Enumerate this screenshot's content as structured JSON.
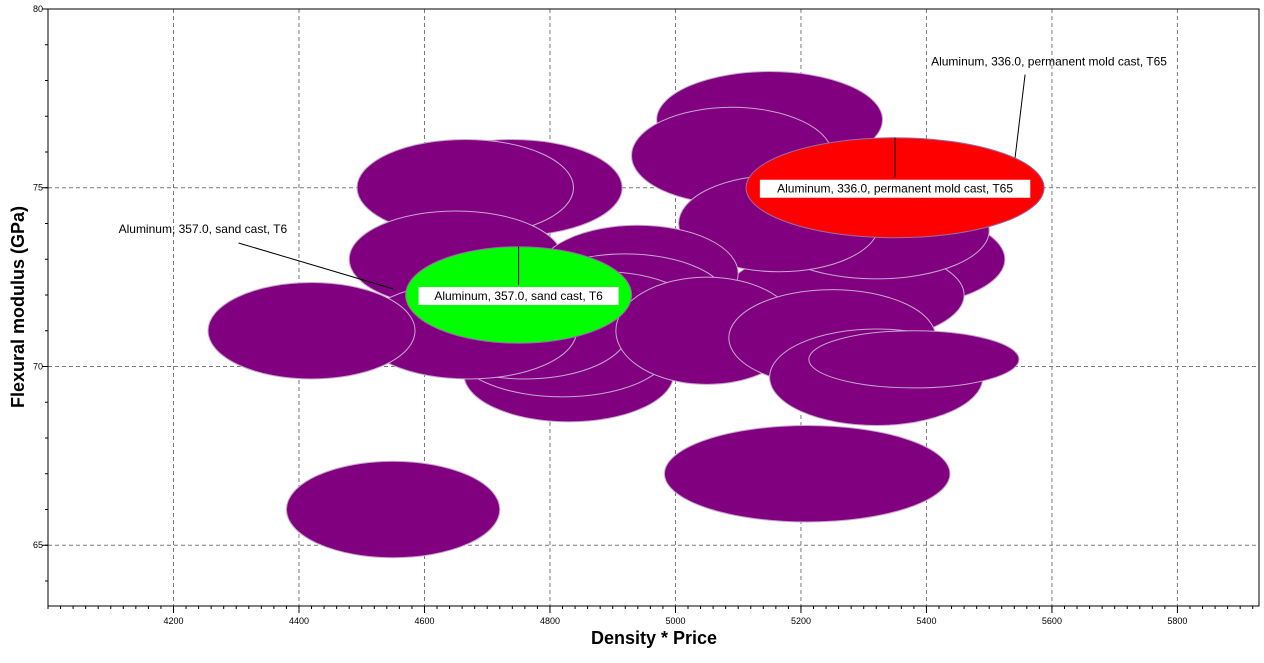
{
  "chart_data": {
    "type": "scatter",
    "title": "",
    "xlabel": "Density * Price",
    "ylabel": "Flexural modulus (GPa)",
    "xlim": [
      4000,
      5930
    ],
    "ylim": [
      63.3,
      80
    ],
    "x_ticks": [
      4200,
      4400,
      4600,
      4800,
      5000,
      5200,
      5400,
      5600,
      5800
    ],
    "y_ticks": [
      65,
      70,
      75,
      80
    ],
    "grid": true,
    "colors": {
      "default": "#800080",
      "highlight_a": "#00ff00",
      "highlight_b": "#ff0000",
      "outline": "#c8a8d0"
    },
    "series": [
      {
        "points": [
          {
            "x": 5150,
            "y": 76.9,
            "w": 360,
            "h": 2.7
          },
          {
            "x": 5090,
            "y": 75.9,
            "w": 320,
            "h": 2.7
          },
          {
            "x": 4740,
            "y": 75.0,
            "w": 350,
            "h": 2.7
          },
          {
            "x": 4665,
            "y": 75.0,
            "w": 345,
            "h": 2.7
          },
          {
            "x": 5340,
            "y": 73.0,
            "w": 370,
            "h": 2.7
          },
          {
            "x": 5270,
            "y": 72.0,
            "w": 380,
            "h": 2.7
          },
          {
            "x": 5320,
            "y": 73.8,
            "w": 360,
            "h": 2.7
          },
          {
            "x": 5165,
            "y": 74.0,
            "w": 320,
            "h": 2.7
          },
          {
            "x": 4650,
            "y": 73.0,
            "w": 340,
            "h": 2.7
          },
          {
            "x": 4940,
            "y": 72.6,
            "w": 320,
            "h": 2.7
          },
          {
            "x": 4920,
            "y": 71.8,
            "w": 330,
            "h": 2.7
          },
          {
            "x": 4885,
            "y": 71.3,
            "w": 320,
            "h": 2.7
          },
          {
            "x": 4830,
            "y": 69.8,
            "w": 335,
            "h": 2.7
          },
          {
            "x": 4820,
            "y": 70.5,
            "w": 345,
            "h": 2.7
          },
          {
            "x": 4760,
            "y": 71.0,
            "w": 330,
            "h": 2.7
          },
          {
            "x": 4670,
            "y": 71.0,
            "w": 345,
            "h": 2.7
          },
          {
            "x": 4420,
            "y": 71.0,
            "w": 330,
            "h": 2.7
          },
          {
            "x": 4550,
            "y": 66.0,
            "w": 340,
            "h": 2.7
          },
          {
            "x": 5050,
            "y": 71.0,
            "w": 290,
            "h": 3.0
          },
          {
            "x": 5250,
            "y": 70.8,
            "w": 330,
            "h": 2.7
          },
          {
            "x": 5320,
            "y": 69.7,
            "w": 340,
            "h": 2.7
          },
          {
            "x": 5380,
            "y": 70.2,
            "w": 335,
            "h": 1.6
          },
          {
            "x": 5210,
            "y": 67.0,
            "w": 455,
            "h": 2.7
          }
        ]
      },
      {
        "points": [
          {
            "x": 4750,
            "y": 72.0,
            "w": 360,
            "h": 2.7
          }
        ]
      },
      {
        "points": [
          {
            "x": 5350,
            "y": 75.0,
            "w": 475,
            "h": 2.8
          }
        ]
      }
    ],
    "annotations": [
      {
        "text": "Aluminum, 357.0, sand cast, T6",
        "point_x": 4750,
        "point_y": 72.0,
        "label_side": "upper-left"
      },
      {
        "text": "Aluminum, 336.0, permanent mold cast, T65",
        "point_x": 5350,
        "point_y": 75.0,
        "label_side": "upper-right"
      }
    ]
  }
}
